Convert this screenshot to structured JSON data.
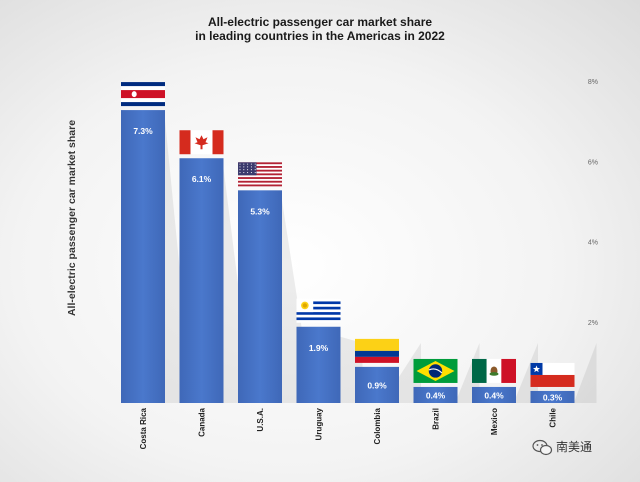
{
  "chart_data": {
    "type": "bar",
    "title_lines": [
      "All-electric passenger car market share",
      "in leading countries in the Americas in 2022"
    ],
    "ylabel": "All-electric passenger car  market share",
    "xlabel": "",
    "ylim": [
      0,
      8
    ],
    "yticks": [
      2,
      4,
      6,
      8
    ],
    "ytick_labels": [
      "2%",
      "4%",
      "6%",
      "8%"
    ],
    "categories": [
      "Costa Rica",
      "Canada",
      "U.S.A.",
      "Uruguay",
      "Colombia",
      "Brazil",
      "Mexico",
      "Chile"
    ],
    "values": [
      7.3,
      6.1,
      5.3,
      1.9,
      0.9,
      0.4,
      0.4,
      0.3
    ],
    "value_labels": [
      "7.3%",
      "6.1%",
      "5.3%",
      "1.9%",
      "0.9%",
      "0.4%",
      "0.4%",
      "0.3%"
    ],
    "flags": [
      "costa-rica",
      "canada",
      "usa",
      "uruguay",
      "colombia",
      "brazil",
      "mexico",
      "chile"
    ],
    "bar_color": "#4472c4",
    "grid": false,
    "legend": "none"
  },
  "watermark": {
    "text": "南美通",
    "icon": "wechat-icon"
  }
}
